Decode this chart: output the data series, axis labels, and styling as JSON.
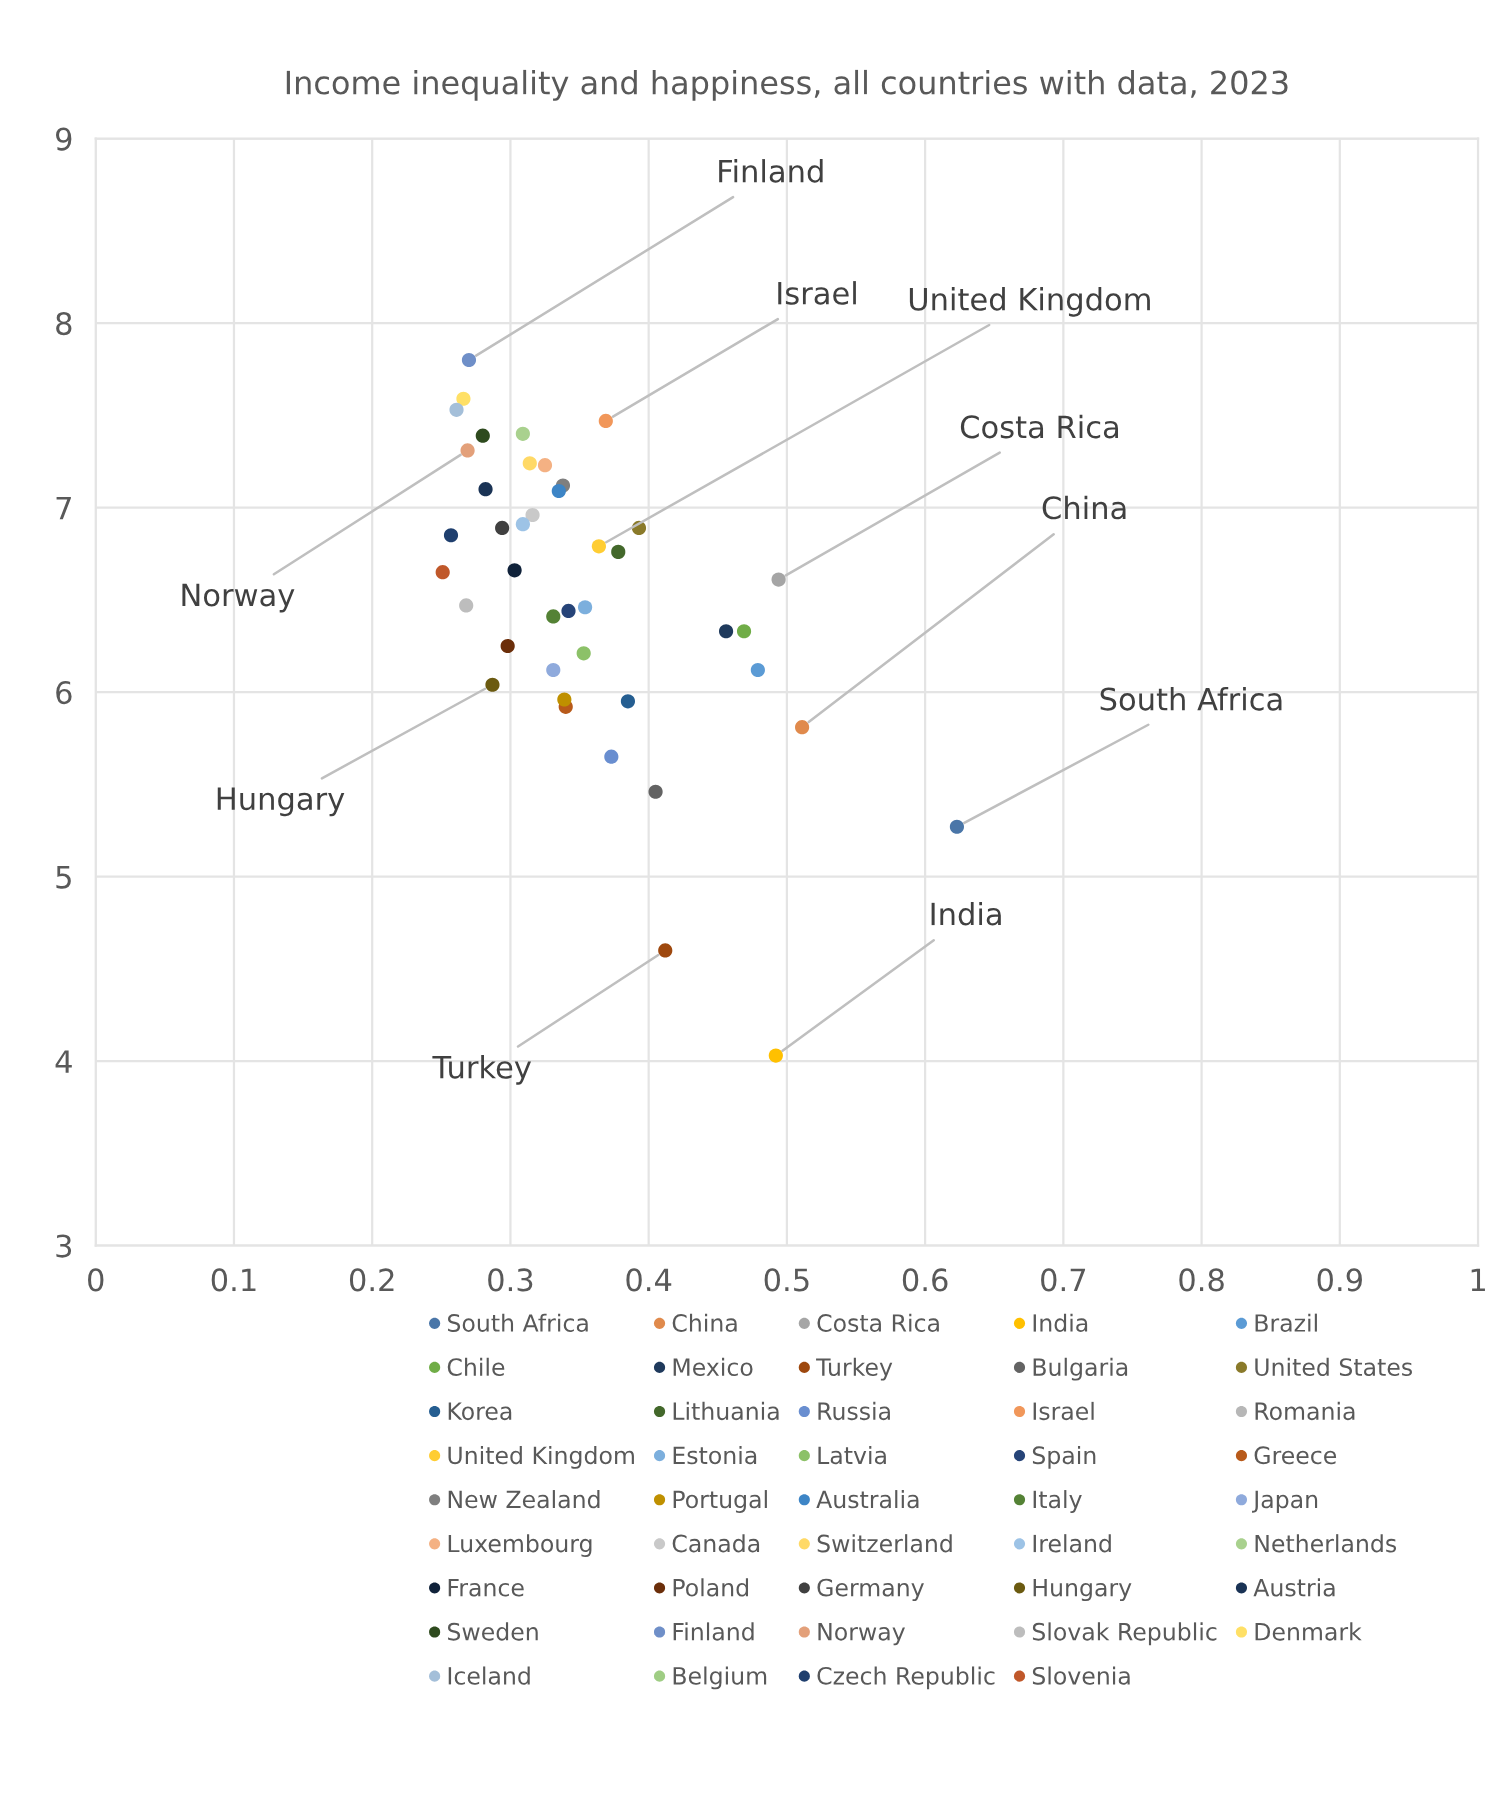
{
  "chart_data": {
    "type": "scatter",
    "title": "Income inequality and happiness, all countries with data, 2023",
    "xlim": [
      0,
      1
    ],
    "ylim": [
      3,
      9
    ],
    "xticks": [
      0,
      0.1,
      0.2,
      0.3,
      0.4,
      0.5,
      0.6,
      0.7,
      0.8,
      0.9,
      1
    ],
    "yticks": [
      3,
      4,
      5,
      6,
      7,
      8,
      9
    ],
    "grid": true,
    "legend": "bottom",
    "marker": "circle",
    "series": [
      {
        "name": "South Africa",
        "color": "#4a76a8",
        "x": [
          0.623
        ],
        "values": [
          5.27
        ]
      },
      {
        "name": "China",
        "color": "#e08a4c",
        "x": [
          0.511
        ],
        "values": [
          5.81
        ]
      },
      {
        "name": "Costa Rica",
        "color": "#a5a5a5",
        "x": [
          0.494
        ],
        "values": [
          6.61
        ]
      },
      {
        "name": "India",
        "color": "#ffc000",
        "x": [
          0.492
        ],
        "values": [
          4.03
        ]
      },
      {
        "name": "Brazil",
        "color": "#5b9bd5",
        "x": [
          0.479
        ],
        "values": [
          6.12
        ]
      },
      {
        "name": "Chile",
        "color": "#70ad47",
        "x": [
          0.469
        ],
        "values": [
          6.33
        ]
      },
      {
        "name": "Mexico",
        "color": "#1f3a5c",
        "x": [
          0.456
        ],
        "values": [
          6.33
        ]
      },
      {
        "name": "Turkey",
        "color": "#9e480e",
        "x": [
          0.412
        ],
        "values": [
          4.6
        ]
      },
      {
        "name": "Bulgaria",
        "color": "#636363",
        "x": [
          0.405
        ],
        "values": [
          5.46
        ]
      },
      {
        "name": "United States",
        "color": "#8a7a2a",
        "x": [
          0.393
        ],
        "values": [
          6.89
        ]
      },
      {
        "name": "Korea",
        "color": "#255e91",
        "x": [
          0.385
        ],
        "values": [
          5.95
        ]
      },
      {
        "name": "Lithuania",
        "color": "#43682b",
        "x": [
          0.378
        ],
        "values": [
          6.76
        ]
      },
      {
        "name": "Russia",
        "color": "#698ed0",
        "x": [
          0.373
        ],
        "values": [
          5.65
        ]
      },
      {
        "name": "Israel",
        "color": "#f1975a",
        "x": [
          0.369
        ],
        "values": [
          7.47
        ]
      },
      {
        "name": "Romania",
        "color": "#b7b7b7",
        "x": [
          null
        ],
        "values": [
          null
        ]
      },
      {
        "name": "United Kingdom",
        "color": "#ffcd33",
        "x": [
          0.364
        ],
        "values": [
          6.79
        ]
      },
      {
        "name": "Estonia",
        "color": "#7cafdd",
        "x": [
          0.354
        ],
        "values": [
          6.46
        ]
      },
      {
        "name": "Latvia",
        "color": "#8cc168",
        "x": [
          0.353
        ],
        "values": [
          6.21
        ]
      },
      {
        "name": "Spain",
        "color": "#264478",
        "x": [
          0.342
        ],
        "values": [
          6.44
        ]
      },
      {
        "name": "Greece",
        "color": "#b85a1a",
        "x": [
          0.34
        ],
        "values": [
          5.92
        ]
      },
      {
        "name": "New Zealand",
        "color": "#7f7f7f",
        "x": [
          0.338
        ],
        "values": [
          7.12
        ]
      },
      {
        "name": "Portugal",
        "color": "#bf9000",
        "x": [
          0.339
        ],
        "values": [
          5.96
        ]
      },
      {
        "name": "Australia",
        "color": "#3d85c6",
        "x": [
          0.335
        ],
        "values": [
          7.09
        ]
      },
      {
        "name": "Italy",
        "color": "#548235",
        "x": [
          0.331
        ],
        "values": [
          6.41
        ]
      },
      {
        "name": "Japan",
        "color": "#8faadc",
        "x": [
          0.331
        ],
        "values": [
          6.12
        ]
      },
      {
        "name": "Luxembourg",
        "color": "#f4b183",
        "x": [
          0.325
        ],
        "values": [
          7.23
        ]
      },
      {
        "name": "Canada",
        "color": "#c9c9c9",
        "x": [
          0.316
        ],
        "values": [
          6.96
        ]
      },
      {
        "name": "Switzerland",
        "color": "#ffd966",
        "x": [
          0.314
        ],
        "values": [
          7.24
        ]
      },
      {
        "name": "Ireland",
        "color": "#9dc3e6",
        "x": [
          0.309
        ],
        "values": [
          6.91
        ]
      },
      {
        "name": "Netherlands",
        "color": "#a9d18e",
        "x": [
          0.309
        ],
        "values": [
          7.4
        ]
      },
      {
        "name": "France",
        "color": "#10223a",
        "x": [
          0.303
        ],
        "values": [
          6.66
        ]
      },
      {
        "name": "Poland",
        "color": "#6b2e0a",
        "x": [
          0.298
        ],
        "values": [
          6.25
        ]
      },
      {
        "name": "Germany",
        "color": "#404040",
        "x": [
          0.294
        ],
        "values": [
          6.89
        ]
      },
      {
        "name": "Hungary",
        "color": "#6b5a10",
        "x": [
          0.287
        ],
        "values": [
          6.04
        ]
      },
      {
        "name": "Austria",
        "color": "#1a3355",
        "x": [
          0.282
        ],
        "values": [
          7.1
        ]
      },
      {
        "name": "Sweden",
        "color": "#2e4a1e",
        "x": [
          0.28
        ],
        "values": [
          7.39
        ]
      },
      {
        "name": "Finland",
        "color": "#6f8fc8",
        "x": [
          0.27
        ],
        "values": [
          7.8
        ]
      },
      {
        "name": "Norway",
        "color": "#e3a07a",
        "x": [
          0.269
        ],
        "values": [
          7.31
        ]
      },
      {
        "name": "Slovak Republic",
        "color": "#bdbdbd",
        "x": [
          0.268
        ],
        "values": [
          6.47
        ]
      },
      {
        "name": "Denmark",
        "color": "#ffe066",
        "x": [
          0.266
        ],
        "values": [
          7.59
        ]
      },
      {
        "name": "Iceland",
        "color": "#a4bfd9",
        "x": [
          0.261
        ],
        "values": [
          7.53
        ]
      },
      {
        "name": "Belgium",
        "color": "#9fcd84",
        "x": [
          null
        ],
        "values": [
          null
        ]
      },
      {
        "name": "Czech Republic",
        "color": "#1f3f6e",
        "x": [
          0.257
        ],
        "values": [
          6.85
        ]
      },
      {
        "name": "Slovenia",
        "color": "#c0582a",
        "x": [
          0.251
        ],
        "values": [
          6.65
        ]
      }
    ],
    "annotations": [
      {
        "text": "Finland",
        "x": 0.27,
        "y": 7.8
      },
      {
        "text": "Israel",
        "x": 0.369,
        "y": 7.47
      },
      {
        "text": "United Kingdom",
        "x": 0.364,
        "y": 6.79
      },
      {
        "text": "Costa Rica",
        "x": 0.494,
        "y": 6.61
      },
      {
        "text": "China",
        "x": 0.511,
        "y": 5.81
      },
      {
        "text": "South Africa",
        "x": 0.623,
        "y": 5.27
      },
      {
        "text": "India",
        "x": 0.492,
        "y": 4.03
      },
      {
        "text": "Turkey",
        "x": 0.412,
        "y": 4.6
      },
      {
        "text": "Norway",
        "x": 0.269,
        "y": 7.31
      },
      {
        "text": "Hungary",
        "x": 0.287,
        "y": 6.04
      }
    ]
  }
}
